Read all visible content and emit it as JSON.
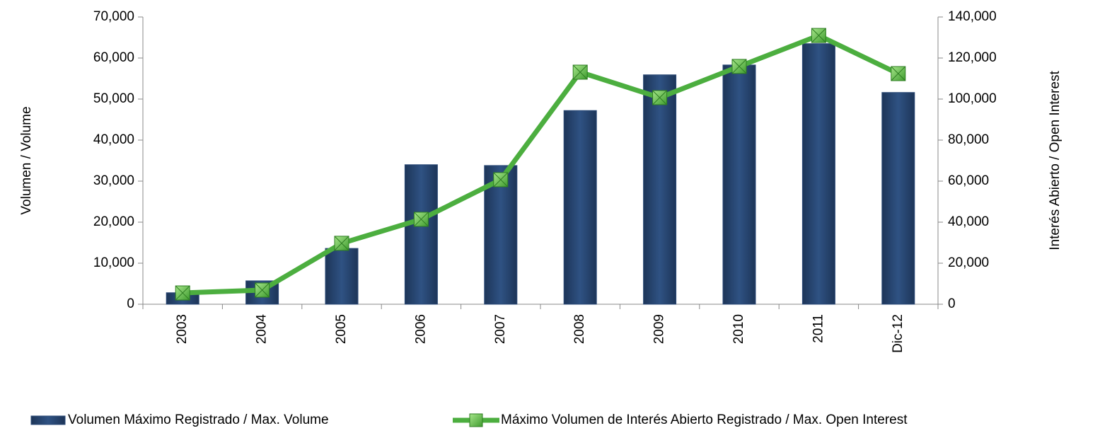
{
  "chart_data": {
    "type": "bar-line",
    "ylabel": "Volumen / Volume",
    "y2label": "Interés Abierto /  Open Interest",
    "categories": [
      "2003",
      "2004",
      "2005",
      "2006",
      "2007",
      "2008",
      "2009",
      "2010",
      "2011",
      "Dic-12"
    ],
    "series": [
      {
        "name": "Volumen Máximo Registrado / Max. Volume",
        "type": "bar",
        "color": "#2b4a77",
        "axis": "y",
        "values": [
          2800,
          5700,
          13600,
          34000,
          33800,
          47200,
          55900,
          58300,
          63500,
          51600
        ]
      },
      {
        "name": "Máximo Volumen de Interés Abierto Registrado / Max. Open Interest",
        "type": "line",
        "color": "#4cae3f",
        "axis": "y2",
        "values": [
          5500,
          6900,
          29700,
          41400,
          60700,
          113100,
          100700,
          115900,
          131000,
          112400
        ]
      }
    ],
    "ylim": [
      0,
      70000
    ],
    "yticks": [
      0,
      {
        "value": 10000,
        "label": "10,000"
      },
      {
        "value": 20000,
        "label": "20,000"
      },
      {
        "value": 30000,
        "label": "30,000"
      },
      {
        "value": 40000,
        "label": "40,000"
      },
      {
        "value": 50000,
        "label": "50,000"
      },
      {
        "value": 60000,
        "label": "60,000"
      },
      {
        "value": 70000,
        "label": "70,000"
      }
    ],
    "y2lim": [
      0,
      140000
    ],
    "y2ticks": [
      0,
      {
        "value": 20000,
        "label": "20,000"
      },
      {
        "value": 40000,
        "label": "40,000"
      },
      {
        "value": 60000,
        "label": "60,000"
      },
      {
        "value": 80000,
        "label": "80,000"
      },
      {
        "value": 100000,
        "label": "100,000"
      },
      {
        "value": 120000,
        "label": "120,000"
      },
      {
        "value": 140000,
        "label": "140,000"
      }
    ],
    "legend": "bottom"
  }
}
